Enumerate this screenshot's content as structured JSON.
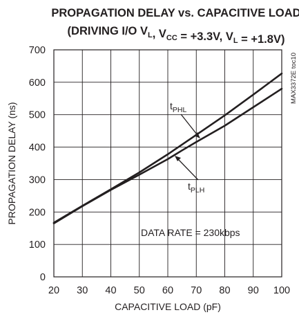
{
  "chart_data": {
    "type": "line",
    "title_line1": "PROPAGATION DELAY vs. CAPACITIVE LOAD",
    "title_line2_parts": [
      {
        "t": "(DRIVING I/O V"
      },
      {
        "t": "L",
        "sub": true
      },
      {
        "t": ", V"
      },
      {
        "t": "CC",
        "sub": true
      },
      {
        "t": " = +3.3V, V"
      },
      {
        "t": "L",
        "sub": true
      },
      {
        "t": " = +1.8V)"
      }
    ],
    "xlabel": "CAPACITIVE LOAD (pF)",
    "ylabel": "PROPAGATION DELAY (ns)",
    "xlim": [
      20,
      100
    ],
    "ylim": [
      0,
      700
    ],
    "xticks": [
      20,
      30,
      40,
      50,
      60,
      70,
      80,
      90,
      100
    ],
    "yticks": [
      0,
      100,
      200,
      300,
      400,
      500,
      600,
      700
    ],
    "grid": true,
    "chart_code": "MAX3372E toc10",
    "annotation": "DATA RATE = 230kbps",
    "series": [
      {
        "name": "tPHL",
        "label_main": "t",
        "label_sub": "PHL",
        "x": [
          20,
          30,
          40,
          50,
          60,
          70,
          80,
          90,
          100
        ],
        "y": [
          167,
          219,
          270,
          322,
          378,
          438,
          498,
          562,
          627
        ]
      },
      {
        "name": "tPLH",
        "label_main": "t",
        "label_sub": "PLH",
        "x": [
          20,
          30,
          40,
          50,
          60,
          65,
          70,
          80,
          90,
          100
        ],
        "y": [
          165,
          218,
          268,
          315,
          363,
          390,
          416,
          466,
          523,
          580
        ]
      }
    ]
  }
}
